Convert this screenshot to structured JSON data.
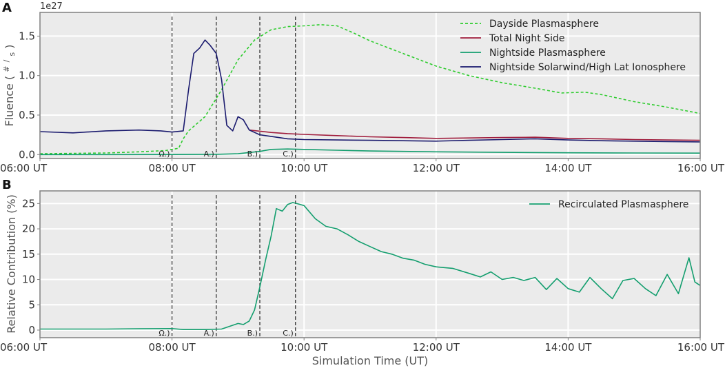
{
  "figure": {
    "panel_a_letter": "A",
    "panel_b_letter": "B",
    "xlabel": "Simulation Time (UT)",
    "exponent_label": "1e27",
    "ylabel_a_main": "Fluence (",
    "ylabel_a_num": "#",
    "ylabel_a_den": "s",
    "ylabel_a_close": ")",
    "ylabel_b": "Relative Contribution (%)"
  },
  "chart_data": [
    {
      "type": "line",
      "panel": "A",
      "title": "",
      "xlabel": "",
      "ylabel": "Fluence (#/s)",
      "y_scale_factor": "1e27",
      "xlim": [
        6.0,
        16.0
      ],
      "ylim": [
        -0.05,
        1.8
      ],
      "xticks": [
        6,
        8,
        10,
        12,
        14,
        16
      ],
      "xtick_labels": [
        "06:00 UT",
        "08:00 UT",
        "10:00 UT",
        "12:00 UT",
        "14:00 UT",
        "16:00 UT"
      ],
      "yticks": [
        0.0,
        0.5,
        1.0,
        1.5
      ],
      "ytick_labels": [
        "0.0",
        "0.5",
        "1.0",
        "1.5"
      ],
      "grid": true,
      "legend_position": "top-right",
      "event_lines": [
        {
          "x": 8.0,
          "label": "Ω.)"
        },
        {
          "x": 8.67,
          "label": "A.)"
        },
        {
          "x": 9.33,
          "label": "B.)"
        },
        {
          "x": 9.87,
          "label": "C.)"
        }
      ],
      "series": [
        {
          "name": "Dayside Plasmasphere",
          "color": "#2ecc2e",
          "dash": "dashed",
          "x": [
            6.0,
            7.0,
            7.5,
            7.9,
            8.1,
            8.17,
            8.25,
            8.5,
            8.75,
            9.0,
            9.25,
            9.5,
            9.75,
            10.0,
            10.25,
            10.5,
            10.75,
            11.0,
            11.5,
            12.0,
            12.5,
            13.0,
            13.5,
            13.9,
            14.25,
            14.5,
            15.0,
            15.5,
            16.0
          ],
          "values": [
            0.01,
            0.02,
            0.035,
            0.05,
            0.08,
            0.2,
            0.3,
            0.48,
            0.82,
            1.2,
            1.45,
            1.58,
            1.62,
            1.63,
            1.645,
            1.63,
            1.54,
            1.44,
            1.28,
            1.12,
            1.0,
            0.91,
            0.84,
            0.78,
            0.79,
            0.76,
            0.67,
            0.6,
            0.52
          ]
        },
        {
          "name": "Total Night Side",
          "color": "#a01c3c",
          "dash": "solid",
          "x": [
            9.17,
            9.5,
            9.75,
            10.0,
            10.5,
            11.0,
            11.5,
            12.0,
            12.5,
            13.0,
            13.5,
            14.0,
            14.5,
            15.0,
            15.5,
            16.0
          ],
          "values": [
            0.31,
            0.28,
            0.265,
            0.255,
            0.24,
            0.225,
            0.215,
            0.205,
            0.21,
            0.215,
            0.22,
            0.205,
            0.2,
            0.19,
            0.185,
            0.18
          ]
        },
        {
          "name": "Nightside Plasmasphere",
          "color": "#139e6e",
          "dash": "solid",
          "x": [
            6.0,
            7.0,
            8.0,
            8.67,
            9.0,
            9.33,
            9.5,
            9.75,
            10.0,
            10.5,
            11.0,
            12.0,
            13.0,
            14.0,
            15.0,
            16.0
          ],
          "values": [
            0.0,
            0.0,
            0.001,
            0.003,
            0.01,
            0.04,
            0.065,
            0.07,
            0.065,
            0.055,
            0.045,
            0.035,
            0.028,
            0.022,
            0.02,
            0.018
          ]
        },
        {
          "name": "Nightside Solarwind/High Lat Ionosphere",
          "color": "#1a1a6e",
          "dash": "solid",
          "x": [
            6.0,
            6.5,
            7.0,
            7.5,
            7.83,
            8.0,
            8.17,
            8.25,
            8.33,
            8.42,
            8.5,
            8.58,
            8.67,
            8.75,
            8.83,
            8.92,
            9.0,
            9.08,
            9.17,
            9.33,
            9.5,
            9.75,
            10.0,
            10.5,
            11.0,
            11.5,
            12.0,
            12.5,
            13.0,
            13.5,
            14.0,
            14.5,
            15.0,
            15.5,
            16.0
          ],
          "values": [
            0.29,
            0.275,
            0.3,
            0.31,
            0.3,
            0.285,
            0.3,
            0.82,
            1.28,
            1.35,
            1.45,
            1.38,
            1.28,
            0.95,
            0.37,
            0.3,
            0.48,
            0.44,
            0.31,
            0.25,
            0.23,
            0.2,
            0.19,
            0.185,
            0.18,
            0.175,
            0.17,
            0.18,
            0.19,
            0.2,
            0.185,
            0.175,
            0.17,
            0.165,
            0.16
          ]
        }
      ]
    },
    {
      "type": "line",
      "panel": "B",
      "title": "",
      "xlabel": "Simulation Time (UT)",
      "ylabel": "Relative Contribution (%)",
      "xlim": [
        6.0,
        16.0
      ],
      "ylim": [
        -1.5,
        27.5
      ],
      "xticks": [
        6,
        8,
        10,
        12,
        14,
        16
      ],
      "xtick_labels": [
        "06:00 UT",
        "08:00 UT",
        "10:00 UT",
        "12:00 UT",
        "14:00 UT",
        "16:00 UT"
      ],
      "yticks": [
        0,
        5,
        10,
        15,
        20,
        25
      ],
      "ytick_labels": [
        "0",
        "5",
        "10",
        "15",
        "20",
        "25"
      ],
      "grid": true,
      "legend_position": "top-right",
      "event_lines": [
        {
          "x": 8.0,
          "label": "Ω.)"
        },
        {
          "x": 8.67,
          "label": "A.)"
        },
        {
          "x": 9.33,
          "label": "B.)"
        },
        {
          "x": 9.87,
          "label": "C.)"
        }
      ],
      "series": [
        {
          "name": "Recirculated Plasmasphere",
          "color": "#139e6e",
          "dash": "solid",
          "x": [
            6.0,
            7.0,
            7.5,
            8.0,
            8.17,
            8.5,
            8.75,
            9.0,
            9.08,
            9.17,
            9.25,
            9.33,
            9.42,
            9.5,
            9.58,
            9.67,
            9.75,
            9.83,
            9.92,
            10.0,
            10.17,
            10.33,
            10.5,
            10.67,
            10.83,
            11.0,
            11.17,
            11.33,
            11.5,
            11.67,
            11.83,
            12.0,
            12.25,
            12.5,
            12.67,
            12.83,
            13.0,
            13.17,
            13.33,
            13.5,
            13.67,
            13.83,
            14.0,
            14.17,
            14.33,
            14.5,
            14.67,
            14.83,
            15.0,
            15.17,
            15.33,
            15.5,
            15.67,
            15.83,
            15.92,
            16.0
          ],
          "values": [
            0.2,
            0.2,
            0.25,
            0.3,
            0.1,
            0.1,
            0.2,
            1.3,
            1.1,
            1.8,
            4.0,
            8.5,
            14.0,
            18.5,
            24.0,
            23.5,
            24.8,
            25.2,
            24.9,
            24.6,
            22.0,
            20.5,
            20.0,
            18.8,
            17.5,
            16.5,
            15.5,
            15.0,
            14.2,
            13.8,
            13.0,
            12.5,
            12.2,
            11.2,
            10.5,
            11.5,
            10.0,
            10.4,
            9.8,
            10.4,
            8.0,
            10.2,
            8.2,
            7.5,
            10.4,
            8.2,
            6.2,
            9.8,
            10.2,
            8.2,
            6.8,
            11.0,
            7.2,
            14.3,
            9.5,
            8.8
          ]
        }
      ]
    }
  ]
}
